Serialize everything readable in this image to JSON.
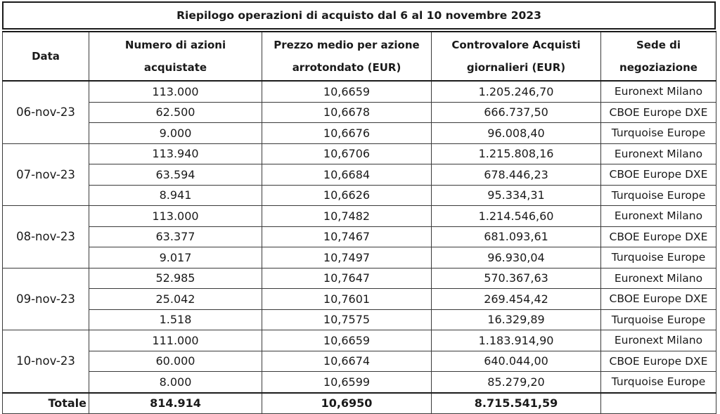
{
  "title": "Riepilogo operazioni di acquisto dal 6 al  10 novembre 2023",
  "headers": {
    "date": "Data",
    "shares_line1": "Numero di azioni",
    "shares_line2": "acquistate",
    "price_line1": "Prezzo medio per azione",
    "price_line2": "arrotondato (EUR)",
    "value_line1": "Controvalore Acquisti",
    "value_line2": "giornalieri (EUR)",
    "venue_line1": "Sede di",
    "venue_line2": "negoziazione"
  },
  "days": [
    {
      "date": "06-nov-23",
      "rows": [
        {
          "shares": "113.000",
          "price": "10,6659",
          "value": "1.205.246,70",
          "venue": "Euronext Milano"
        },
        {
          "shares": "62.500",
          "price": "10,6678",
          "value": "666.737,50",
          "venue": "CBOE Europe DXE"
        },
        {
          "shares": "9.000",
          "price": "10,6676",
          "value": "96.008,40",
          "venue": "Turquoise Europe"
        }
      ]
    },
    {
      "date": "07-nov-23",
      "rows": [
        {
          "shares": "113.940",
          "price": "10,6706",
          "value": "1.215.808,16",
          "venue": "Euronext Milano"
        },
        {
          "shares": "63.594",
          "price": "10,6684",
          "value": "678.446,23",
          "venue": "CBOE Europe DXE"
        },
        {
          "shares": "8.941",
          "price": "10,6626",
          "value": "95.334,31",
          "venue": "Turquoise Europe"
        }
      ]
    },
    {
      "date": "08-nov-23",
      "rows": [
        {
          "shares": "113.000",
          "price": "10,7482",
          "value": "1.214.546,60",
          "venue": "Euronext Milano"
        },
        {
          "shares": "63.377",
          "price": "10,7467",
          "value": "681.093,61",
          "venue": "CBOE Europe DXE"
        },
        {
          "shares": "9.017",
          "price": "10,7497",
          "value": "96.930,04",
          "venue": "Turquoise Europe"
        }
      ]
    },
    {
      "date": "09-nov-23",
      "rows": [
        {
          "shares": "52.985",
          "price": "10,7647",
          "value": "570.367,63",
          "venue": "Euronext Milano"
        },
        {
          "shares": "25.042",
          "price": "10,7601",
          "value": "269.454,42",
          "venue": "CBOE Europe DXE"
        },
        {
          "shares": "1.518",
          "price": "10,7575",
          "value": "16.329,89",
          "venue": "Turquoise Europe"
        }
      ]
    },
    {
      "date": "10-nov-23",
      "rows": [
        {
          "shares": "111.000",
          "price": "10,6659",
          "value": "1.183.914,90",
          "venue": "Euronext Milano"
        },
        {
          "shares": "60.000",
          "price": "10,6674",
          "value": "640.044,00",
          "venue": "CBOE Europe DXE"
        },
        {
          "shares": "8.000",
          "price": "10,6599",
          "value": "85.279,20",
          "venue": "Turquoise Europe"
        }
      ]
    }
  ],
  "totals": {
    "label": "Totale",
    "shares": "814.914",
    "price": "10,6950",
    "value": "8.715.541,59",
    "venue": ""
  }
}
